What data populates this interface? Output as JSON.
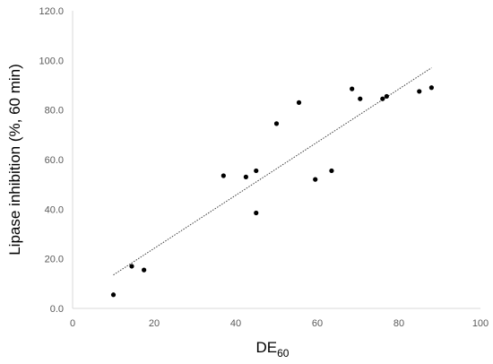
{
  "chart_data": {
    "type": "scatter",
    "xlabel": "DE",
    "xlabel_sub": "60",
    "ylabel": "Lipase inhibition (%, 60 min)",
    "xlim": [
      0,
      100
    ],
    "ylim": [
      0,
      120
    ],
    "x_ticks": [
      "0",
      "20",
      "40",
      "60",
      "80",
      "100"
    ],
    "y_ticks": [
      "0.0",
      "20.0",
      "40.0",
      "60.0",
      "80.0",
      "100.0",
      "120.0"
    ],
    "grid": false,
    "series": [
      {
        "points": [
          {
            "x": 10,
            "y": 5.5
          },
          {
            "x": 14.5,
            "y": 17
          },
          {
            "x": 17.5,
            "y": 15.5
          },
          {
            "x": 37,
            "y": 53.5
          },
          {
            "x": 42.5,
            "y": 53
          },
          {
            "x": 45,
            "y": 55.5
          },
          {
            "x": 45,
            "y": 38.5
          },
          {
            "x": 50,
            "y": 74.5
          },
          {
            "x": 55.5,
            "y": 83
          },
          {
            "x": 59.5,
            "y": 52
          },
          {
            "x": 63.5,
            "y": 55.5
          },
          {
            "x": 68.5,
            "y": 88.5
          },
          {
            "x": 70.5,
            "y": 84.5
          },
          {
            "x": 76,
            "y": 84.5
          },
          {
            "x": 77,
            "y": 85.5
          },
          {
            "x": 85,
            "y": 87.5
          },
          {
            "x": 88,
            "y": 89
          }
        ],
        "trendline": {
          "type": "linear",
          "x": [
            10,
            88
          ],
          "y": [
            13.5,
            97
          ]
        },
        "marker_color": "#000000",
        "trendline_color": "#404040"
      }
    ]
  }
}
